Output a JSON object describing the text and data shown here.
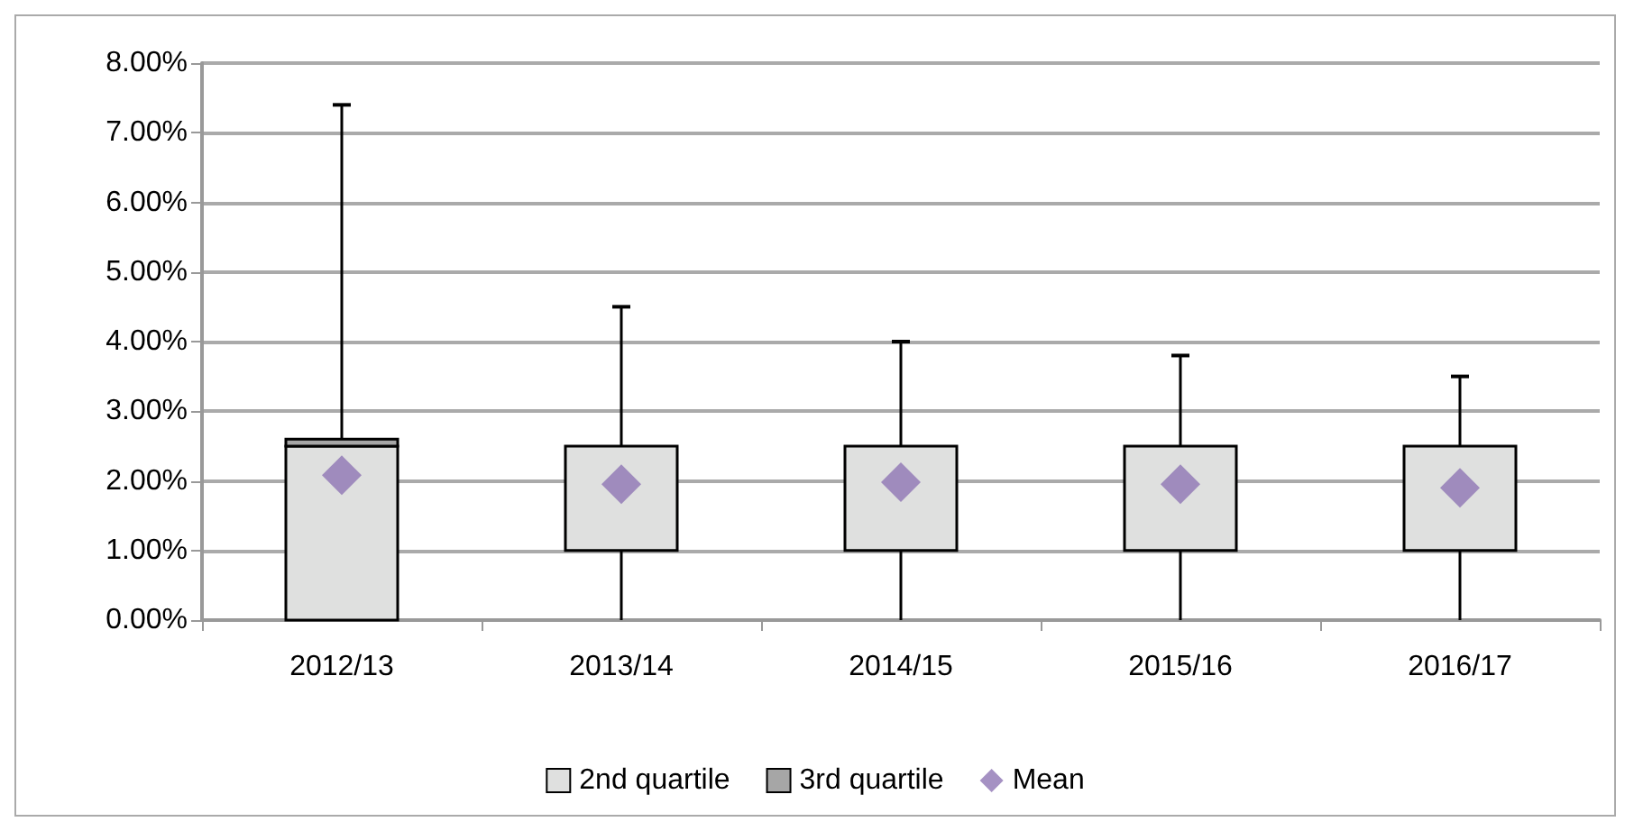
{
  "chart_data": {
    "type": "bar",
    "categories": [
      "2012/13",
      "2013/14",
      "2014/15",
      "2015/16",
      "2016/17"
    ],
    "series": [
      {
        "name": "2nd quartile",
        "color": "#dfe0df",
        "base": [
          0,
          1,
          1,
          1,
          1
        ],
        "values": [
          2.5,
          1.5,
          1.5,
          1.5,
          1.5
        ],
        "errors": [
          [
            0,
            7.4
          ],
          [
            0,
            4.5
          ],
          [
            0,
            4.0
          ],
          [
            0,
            3.8
          ],
          [
            0,
            3.5
          ]
        ]
      },
      {
        "name": "3rd quartile",
        "color": "#a6a6a6",
        "base": [
          2.5,
          null,
          null,
          null,
          null
        ],
        "values": [
          0.1,
          null,
          null,
          null,
          null
        ]
      },
      {
        "name": "Mean",
        "type": "scatter",
        "color": "#8f76b4",
        "marker": "diamond",
        "x": [
          "2012/13",
          "2013/14",
          "2014/15",
          "2015/16",
          "2016/17"
        ],
        "values": [
          2.08,
          1.95,
          1.98,
          1.95,
          1.9
        ]
      }
    ],
    "ylim": [
      0,
      8
    ],
    "yticks": [
      {
        "value": 0,
        "label": "0.00%"
      },
      {
        "value": 1,
        "label": "1.00%"
      },
      {
        "value": 2,
        "label": "2.00%"
      },
      {
        "value": 3,
        "label": "3.00%"
      },
      {
        "value": 4,
        "label": "4.00%"
      },
      {
        "value": 5,
        "label": "5.00%"
      },
      {
        "value": 6,
        "label": "6.00%"
      },
      {
        "value": 7,
        "label": "7.00%"
      },
      {
        "value": 8,
        "label": "8.00%"
      }
    ],
    "grid": "y",
    "legend": "bottom"
  }
}
